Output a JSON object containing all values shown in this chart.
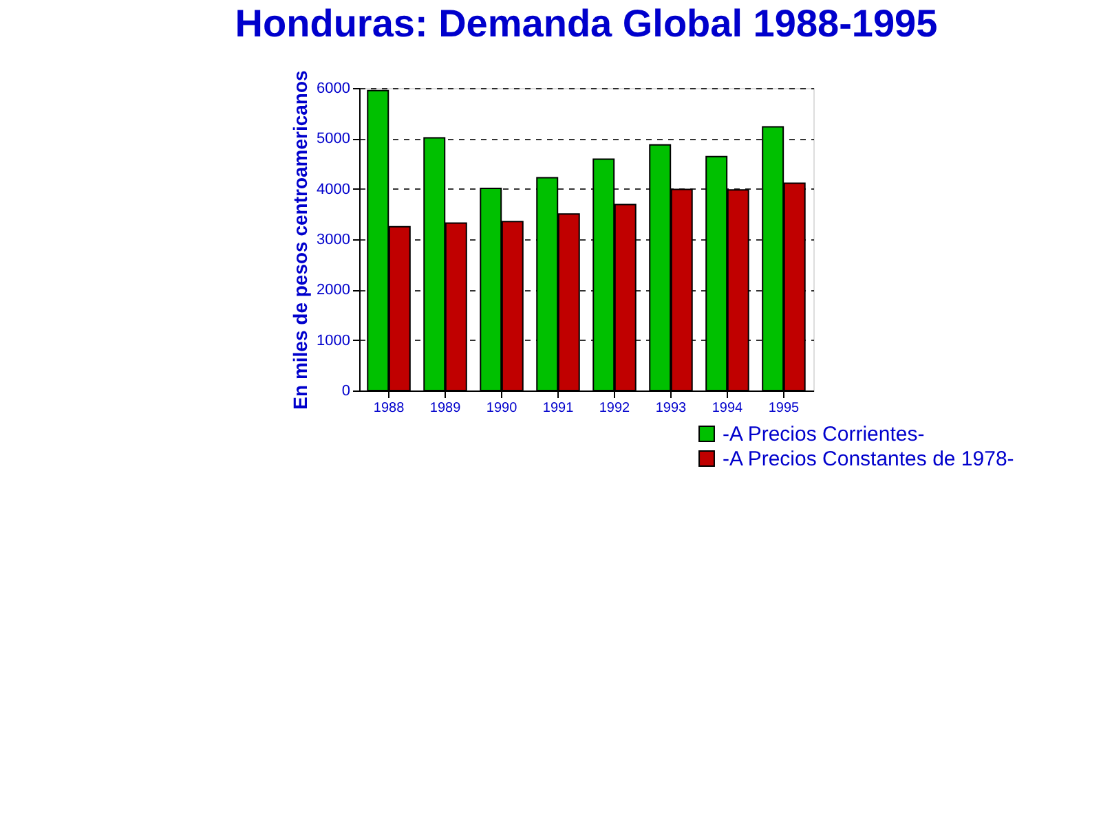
{
  "chart_data": {
    "type": "bar",
    "title": "Honduras: Demanda Global 1988-1995",
    "ylabel": "En miles de pesos centroamericanos",
    "categories": [
      "1988",
      "1989",
      "1990",
      "1991",
      "1992",
      "1993",
      "1994",
      "1995"
    ],
    "series": [
      {
        "name": "-A Precios Corrientes-",
        "color": "#00c000",
        "values": [
          5950,
          5010,
          4010,
          4220,
          4590,
          4870,
          4640,
          5230
        ]
      },
      {
        "name": "-A Precios Constantes de 1978-",
        "color": "#c00000",
        "values": [
          3250,
          3320,
          3350,
          3500,
          3690,
          3990,
          3980,
          4110
        ]
      }
    ],
    "ylim": [
      0,
      6000
    ],
    "yticks": [
      0,
      1000,
      2000,
      3000,
      4000,
      5000,
      6000
    ],
    "grid": "y",
    "legend": "bottom right"
  }
}
